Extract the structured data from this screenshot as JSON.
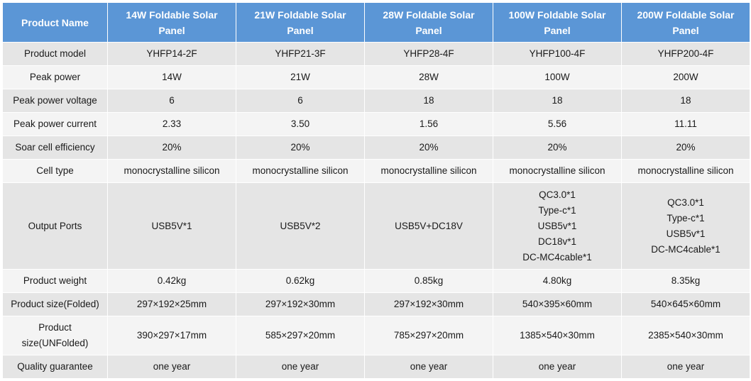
{
  "header": {
    "product_name": "Product Name",
    "products": [
      "14W Foldable Solar Panel",
      "21W Foldable Solar Panel",
      "28W Foldable Solar Panel",
      "100W Foldable Solar Panel",
      "200W Foldable Solar Panel"
    ]
  },
  "rows": [
    {
      "label": "Product model",
      "values": [
        "YHFP14-2F",
        "YHFP21-3F",
        "YHFP28-4F",
        "YHFP100-4F",
        "YHFP200-4F"
      ]
    },
    {
      "label": "Peak power",
      "values": [
        "14W",
        "21W",
        "28W",
        "100W",
        "200W"
      ]
    },
    {
      "label": "Peak power voltage",
      "values": [
        "6",
        "6",
        "18",
        "18",
        "18"
      ]
    },
    {
      "label": "Peak power current",
      "values": [
        "2.33",
        "3.50",
        "1.56",
        "5.56",
        "11.11"
      ]
    },
    {
      "label": "Soar cell efficiency",
      "values": [
        "20%",
        "20%",
        "20%",
        "20%",
        "20%"
      ]
    },
    {
      "label": "Cell type",
      "values": [
        "monocrystalline silicon",
        "monocrystalline silicon",
        "monocrystalline silicon",
        "monocrystalline silicon",
        "monocrystalline silicon"
      ]
    },
    {
      "label": "Output Ports",
      "values": [
        [
          "USB5V*1"
        ],
        [
          "USB5V*2"
        ],
        [
          "USB5V+DC18V"
        ],
        [
          "QC3.0*1",
          "Type-c*1",
          "USB5v*1",
          "DC18v*1",
          "DC-MC4cable*1"
        ],
        [
          "QC3.0*1",
          "Type-c*1",
          "USB5v*1",
          "DC-MC4cable*1"
        ]
      ]
    },
    {
      "label": "Product weight",
      "values": [
        "0.42kg",
        "0.62kg",
        "0.85kg",
        "4.80kg",
        "8.35kg"
      ]
    },
    {
      "label": "Product size(Folded)",
      "values": [
        "297×192×25mm",
        "297×192×30mm",
        "297×192×30mm",
        "540×395×60mm",
        "540×645×60mm"
      ]
    },
    {
      "label_lines": [
        "Product",
        "size(UNFolded)"
      ],
      "values": [
        "390×297×17mm",
        "585×297×20mm",
        "785×297×20mm",
        "1385×540×30mm",
        "2385×540×30mm"
      ]
    },
    {
      "label": "Quality guarantee",
      "values": [
        "one year",
        "one year",
        "one year",
        "one year",
        "one year"
      ]
    }
  ]
}
